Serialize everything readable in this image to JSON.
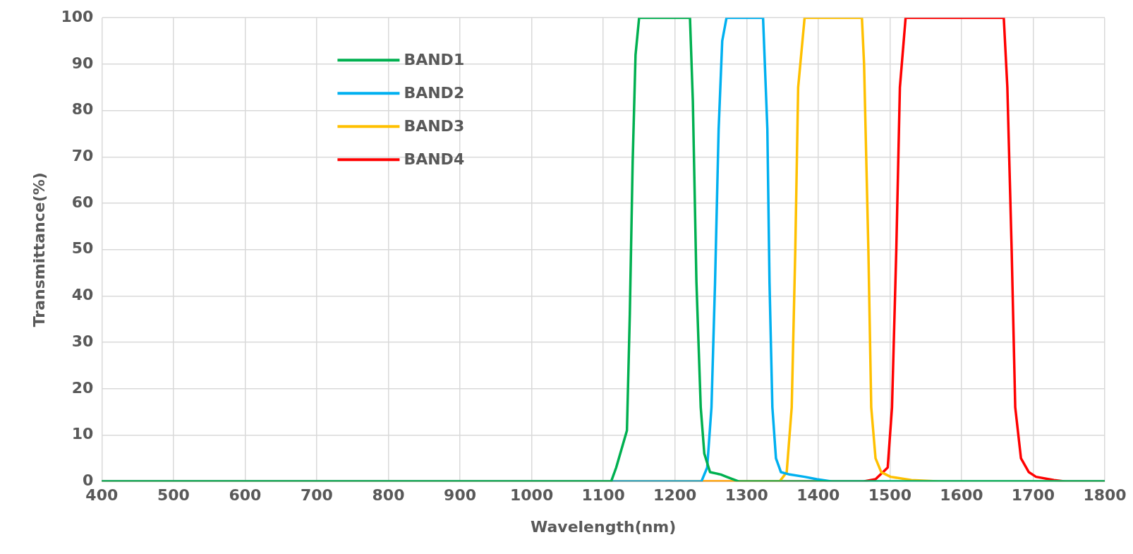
{
  "chart_data": {
    "type": "line",
    "xlabel": "Wavelength(nm)",
    "ylabel": "Transmittance(%)",
    "xlim": [
      400,
      1800
    ],
    "xticks": [
      400,
      500,
      600,
      700,
      800,
      900,
      1000,
      1100,
      1200,
      1300,
      1400,
      1500,
      1600,
      1700,
      1800
    ],
    "ylim": [
      0,
      100
    ],
    "yticks": [
      0,
      10,
      20,
      30,
      40,
      50,
      60,
      70,
      80,
      90,
      100
    ],
    "grid": true,
    "legend": "top left",
    "marker": "none",
    "line_style": "solid",
    "series": [
      {
        "name": "BAND1",
        "color": "#00b050",
        "x": [
          400,
          1111,
          1118,
          1133,
          1137,
          1141,
          1145,
          1150,
          1221,
          1225,
          1230,
          1236,
          1241,
          1249,
          1264,
          1272,
          1289,
          1800
        ],
        "values": [
          0,
          0,
          3,
          11,
          36,
          69,
          92,
          100,
          100,
          82,
          43,
          16,
          6,
          2,
          1.5,
          1,
          0,
          0
        ]
      },
      {
        "name": "BAND2",
        "color": "#00b0f0",
        "x": [
          400,
          1237,
          1245,
          1251,
          1256,
          1261,
          1266,
          1272,
          1323,
          1329,
          1332,
          1336,
          1341,
          1348,
          1360,
          1381,
          1398,
          1419,
          1800
        ],
        "values": [
          0,
          0,
          3,
          16,
          43,
          76,
          95,
          100,
          100,
          76,
          43,
          16,
          5,
          2,
          1.5,
          1,
          0.5,
          0,
          0
        ]
      },
      {
        "name": "BAND3",
        "color": "#ffc000",
        "x": [
          400,
          1346,
          1356,
          1363,
          1368,
          1372,
          1381,
          1461,
          1464,
          1470,
          1474,
          1480,
          1488,
          1501,
          1530,
          1571,
          1800
        ],
        "values": [
          0,
          0,
          2,
          16,
          50,
          85,
          100,
          100,
          90,
          50,
          16,
          5,
          2,
          1,
          0.3,
          0,
          0
        ]
      },
      {
        "name": "BAND4",
        "color": "#ff0000",
        "x": [
          400,
          1463,
          1480,
          1497,
          1503,
          1509,
          1514,
          1522,
          1659,
          1664,
          1670,
          1675,
          1683,
          1694,
          1704,
          1729,
          1745,
          1800
        ],
        "values": [
          0,
          0,
          0.5,
          3,
          16,
          50,
          85,
          100,
          100,
          85,
          50,
          16,
          5,
          2,
          1,
          0.3,
          0,
          0
        ]
      }
    ]
  }
}
